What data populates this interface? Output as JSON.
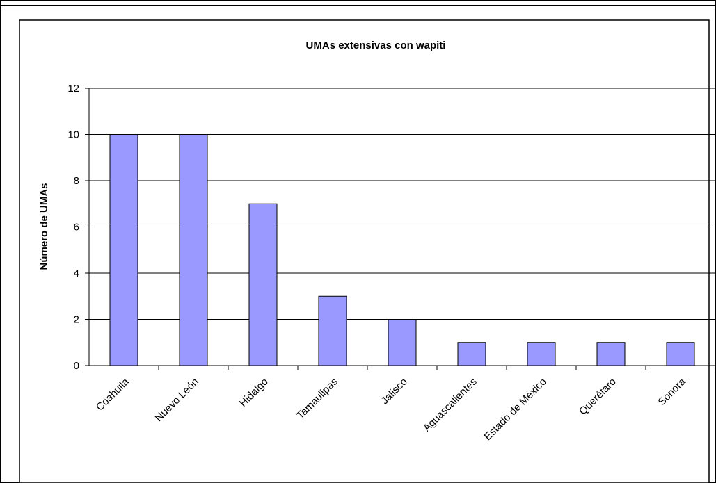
{
  "chart_data": {
    "type": "bar",
    "title": "UMAs extensivas con wapiti",
    "xlabel": "",
    "ylabel": "Número de UMAs",
    "categories": [
      "Coahuila",
      "Nuevo León",
      "Hidalgo",
      "Tamaulipas",
      "Jalisco",
      "Aguascalientes",
      "Estado de México",
      "Querétaro",
      "Sonora"
    ],
    "values": [
      10,
      10,
      7,
      3,
      2,
      1,
      1,
      1,
      1
    ],
    "ylim": [
      0,
      12
    ],
    "yticks": [
      "0",
      "2",
      "4",
      "6",
      "8",
      "10",
      "12"
    ],
    "grid": true,
    "legend": "none",
    "bar_color": "#9999ff",
    "bar_edge_color": "#000000"
  }
}
